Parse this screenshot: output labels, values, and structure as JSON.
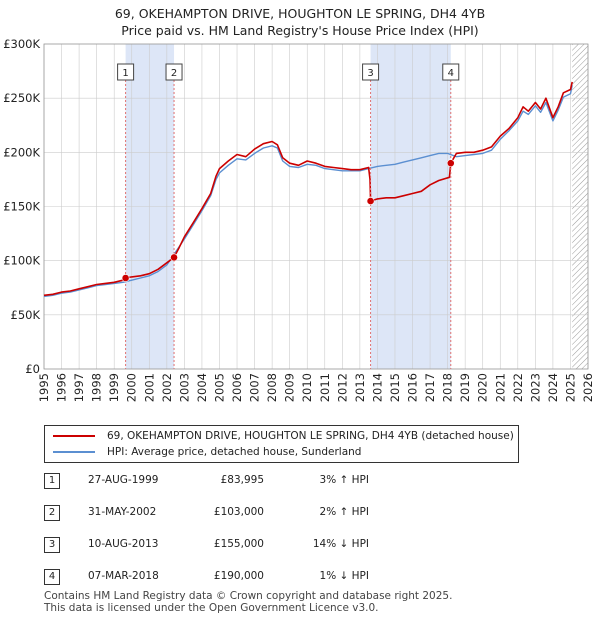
{
  "title_line1": "69, OKEHAMPTON DRIVE, HOUGHTON LE SPRING, DH4 4YB",
  "title_line2": "Price paid vs. HM Land Registry's House Price Index (HPI)",
  "chart_data": {
    "type": "line",
    "title": "Price paid vs. HM Land Registry's House Price Index (HPI)",
    "xlim": [
      1995,
      2026
    ],
    "ylim": [
      0,
      300000
    ],
    "x_ticks": [
      1995,
      1996,
      1997,
      1998,
      1999,
      2000,
      2001,
      2002,
      2003,
      2004,
      2005,
      2006,
      2007,
      2008,
      2009,
      2010,
      2011,
      2012,
      2013,
      2014,
      2015,
      2016,
      2017,
      2018,
      2019,
      2020,
      2021,
      2022,
      2023,
      2024,
      2025,
      2026
    ],
    "y_ticks": [
      0,
      50000,
      100000,
      150000,
      200000,
      250000,
      300000
    ],
    "y_tick_labels": [
      "£0",
      "£50K",
      "£100K",
      "£150K",
      "£200K",
      "£250K",
      "£300K"
    ],
    "colors": {
      "price_paid": "#cc0000",
      "hpi": "#5b8fd1",
      "shade": "#dde6f7",
      "marker_line": "#e07070",
      "grid": "#cccccc"
    },
    "shaded_ranges": [
      [
        1999.65,
        2002.41
      ],
      [
        2013.61,
        2018.18
      ]
    ],
    "forecast_from": 2025.1,
    "series": [
      {
        "name": "69, OKEHAMPTON DRIVE, HOUGHTON LE SPRING, DH4 4YB (detached house)",
        "role": "price_paid",
        "x": [
          1995.0,
          1995.5,
          1996.0,
          1996.5,
          1997.0,
          1997.5,
          1998.0,
          1998.5,
          1999.0,
          1999.5,
          1999.65,
          2000.0,
          2000.5,
          2001.0,
          2001.5,
          2002.0,
          2002.41,
          2002.7,
          2003.0,
          2003.5,
          2004.0,
          2004.5,
          2004.8,
          2005.0,
          2005.5,
          2006.0,
          2006.5,
          2007.0,
          2007.5,
          2008.0,
          2008.3,
          2008.6,
          2009.0,
          2009.5,
          2010.0,
          2010.5,
          2011.0,
          2011.5,
          2012.0,
          2012.5,
          2013.0,
          2013.5,
          2013.58,
          2013.61,
          2014.0,
          2014.5,
          2015.0,
          2015.5,
          2016.0,
          2016.5,
          2017.0,
          2017.5,
          2018.1,
          2018.18,
          2018.5,
          2019.0,
          2019.5,
          2020.0,
          2020.5,
          2021.0,
          2021.5,
          2022.0,
          2022.3,
          2022.6,
          2023.0,
          2023.3,
          2023.6,
          2024.0,
          2024.3,
          2024.6,
          2025.0,
          2025.1
        ],
        "y": [
          68000,
          69000,
          71000,
          72000,
          74000,
          76000,
          78000,
          79000,
          80000,
          82000,
          83995,
          85000,
          86000,
          88000,
          92000,
          98000,
          103000,
          112000,
          122000,
          135000,
          148000,
          162000,
          178000,
          185000,
          192000,
          198000,
          196000,
          203000,
          208000,
          210000,
          207000,
          195000,
          190000,
          188000,
          192000,
          190000,
          187000,
          186000,
          185000,
          184000,
          184000,
          186000,
          175000,
          155000,
          157000,
          158000,
          158000,
          160000,
          162000,
          164000,
          170000,
          174000,
          177000,
          190000,
          199000,
          200000,
          200000,
          202000,
          205000,
          215000,
          222000,
          232000,
          242000,
          238000,
          246000,
          240000,
          250000,
          232000,
          242000,
          255000,
          258000,
          265000
        ]
      },
      {
        "name": "HPI: Average price, detached house, Sunderland",
        "role": "hpi",
        "x": [
          1995.0,
          1995.5,
          1996.0,
          1996.5,
          1997.0,
          1997.5,
          1998.0,
          1998.5,
          1999.0,
          1999.5,
          2000.0,
          2000.5,
          2001.0,
          2001.5,
          2002.0,
          2002.5,
          2003.0,
          2003.5,
          2004.0,
          2004.5,
          2004.8,
          2005.0,
          2005.5,
          2006.0,
          2006.5,
          2007.0,
          2007.5,
          2008.0,
          2008.3,
          2008.6,
          2009.0,
          2009.5,
          2010.0,
          2010.5,
          2011.0,
          2011.5,
          2012.0,
          2012.5,
          2013.0,
          2013.5,
          2014.0,
          2014.5,
          2015.0,
          2015.5,
          2016.0,
          2016.5,
          2017.0,
          2017.5,
          2018.0,
          2018.5,
          2019.0,
          2019.5,
          2020.0,
          2020.5,
          2021.0,
          2021.5,
          2022.0,
          2022.3,
          2022.6,
          2023.0,
          2023.3,
          2023.6,
          2024.0,
          2024.3,
          2024.6,
          2025.0,
          2025.1
        ],
        "y": [
          67000,
          68000,
          70000,
          71000,
          73000,
          75000,
          77000,
          78000,
          79000,
          80000,
          82000,
          84000,
          86000,
          90000,
          96000,
          108000,
          120000,
          133000,
          146000,
          160000,
          175000,
          181000,
          188000,
          194000,
          193000,
          199000,
          204000,
          206000,
          204000,
          192000,
          187000,
          186000,
          189000,
          188000,
          185000,
          184000,
          183000,
          183000,
          183000,
          185000,
          187000,
          188000,
          189000,
          191000,
          193000,
          195000,
          197000,
          199000,
          199000,
          196000,
          197000,
          198000,
          199000,
          202000,
          212000,
          220000,
          229000,
          238000,
          235000,
          243000,
          237000,
          246000,
          229000,
          239000,
          251000,
          254000,
          262000
        ]
      }
    ],
    "sales": [
      {
        "id": "1",
        "x": 1999.65,
        "price": 83995
      },
      {
        "id": "2",
        "x": 2002.41,
        "price": 103000
      },
      {
        "id": "3",
        "x": 2013.61,
        "price": 155000
      },
      {
        "id": "4",
        "x": 2018.18,
        "price": 190000
      }
    ]
  },
  "legend": {
    "price_paid": "69, OKEHAMPTON DRIVE, HOUGHTON LE SPRING, DH4 4YB (detached house)",
    "hpi": "HPI: Average price, detached house, Sunderland"
  },
  "sales_table": [
    {
      "num": "1",
      "date": "27-AUG-1999",
      "price": "£83,995",
      "delta": "3% ↑ HPI"
    },
    {
      "num": "2",
      "date": "31-MAY-2002",
      "price": "£103,000",
      "delta": "2% ↑ HPI"
    },
    {
      "num": "3",
      "date": "10-AUG-2013",
      "price": "£155,000",
      "delta": "14% ↓ HPI"
    },
    {
      "num": "4",
      "date": "07-MAR-2018",
      "price": "£190,000",
      "delta": "1% ↓ HPI"
    }
  ],
  "footer_line1": "Contains HM Land Registry data © Crown copyright and database right 2025.",
  "footer_line2": "This data is licensed under the Open Government Licence v3.0."
}
